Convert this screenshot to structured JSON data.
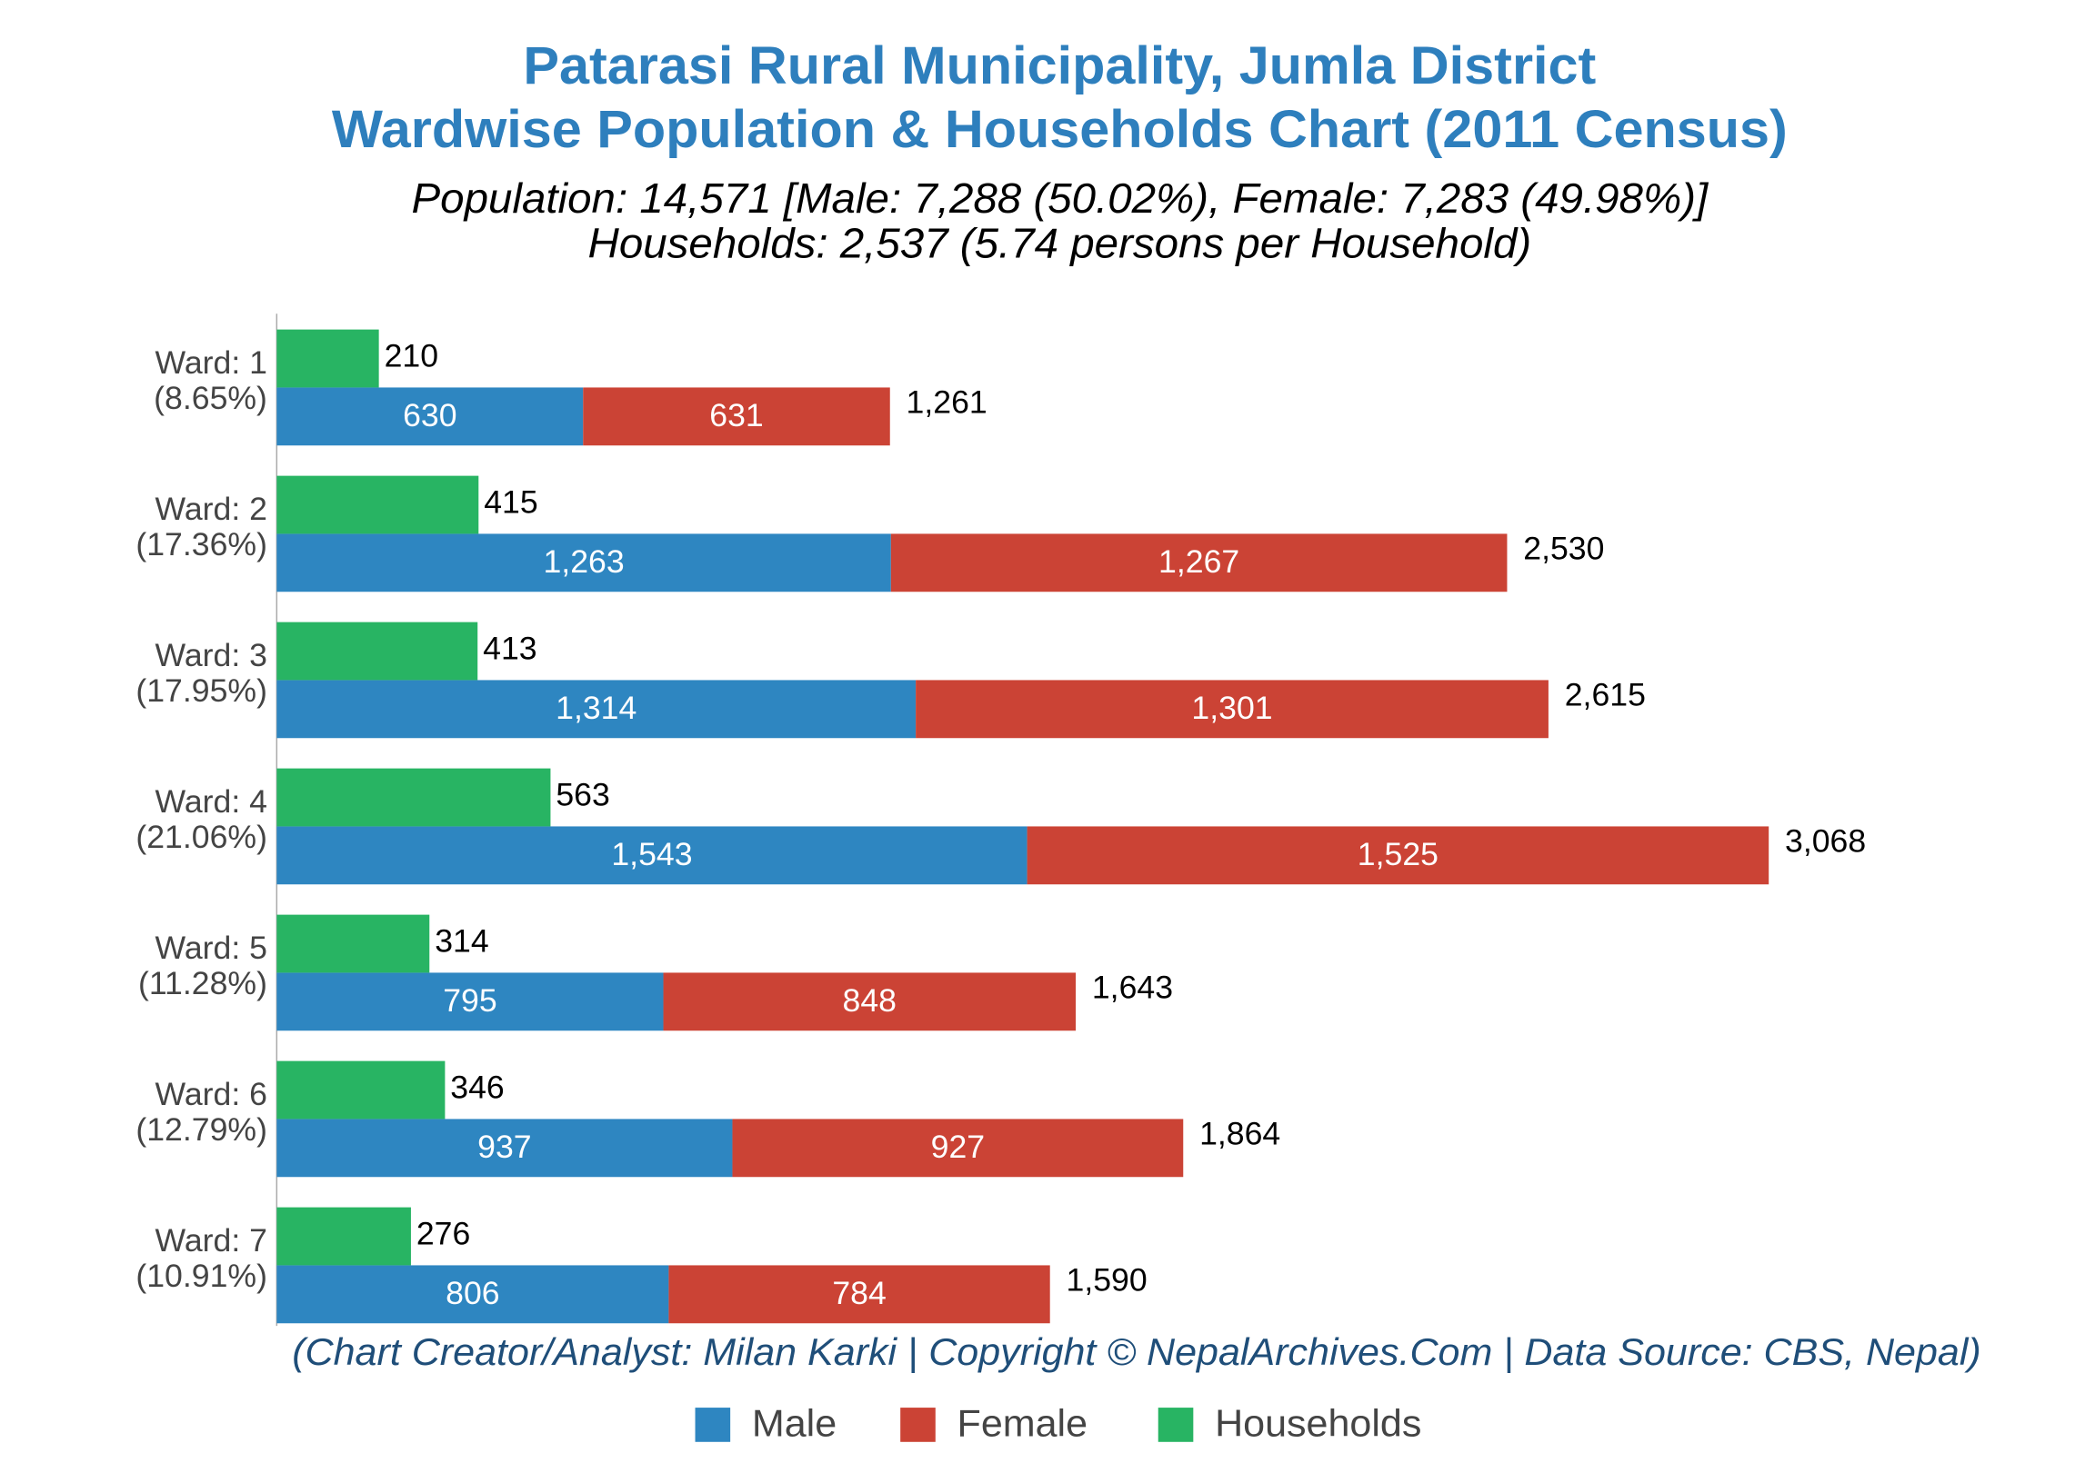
{
  "chart_data": {
    "type": "bar",
    "title": [
      "Patarasi Rural Municipality, Jumla District",
      "Wardwise Population & Households Chart (2011 Census)"
    ],
    "subtitle": [
      "Population: 14,571 [Male: 7,288 (50.02%), Female: 7,283 (49.98%)]",
      "Households: 2,537 (5.74 persons per Household)"
    ],
    "footer": "(Chart Creator/Analyst: Milan Karki | Copyright © NepalArchives.Com | Data Source: CBS, Nepal)",
    "categories": [
      "Ward: 1",
      "Ward: 2",
      "Ward: 3",
      "Ward: 4",
      "Ward: 5",
      "Ward: 6",
      "Ward: 7"
    ],
    "category_sublabels": [
      "(8.65%)",
      "(17.36%)",
      "(17.95%)",
      "(21.06%)",
      "(11.28%)",
      "(12.79%)",
      "(10.91%)"
    ],
    "xlim": [
      0,
      3700
    ],
    "series": [
      {
        "name": "Male",
        "color": "#2e86c1",
        "stack": "population",
        "values": [
          630,
          1263,
          1314,
          1543,
          795,
          937,
          806
        ],
        "value_labels": [
          "630",
          "1,263",
          "1,314",
          "1,543",
          "795",
          "937",
          "806"
        ]
      },
      {
        "name": "Female",
        "color": "#cb4335",
        "stack": "population",
        "values": [
          631,
          1267,
          1301,
          1525,
          848,
          927,
          784
        ],
        "value_labels": [
          "631",
          "1,267",
          "1,301",
          "1,525",
          "848",
          "927",
          "784"
        ]
      },
      {
        "name": "Households",
        "color": "#28b463",
        "stack": "households",
        "values": [
          210,
          415,
          413,
          563,
          314,
          346,
          276
        ]
      }
    ],
    "totals": {
      "values": [
        1261,
        2530,
        2615,
        3068,
        1643,
        1864,
        1590
      ],
      "value_labels": [
        "1,261",
        "2,530",
        "2,615",
        "3,068",
        "1,643",
        "1,864",
        "1,590"
      ]
    },
    "legend": "bottom"
  }
}
